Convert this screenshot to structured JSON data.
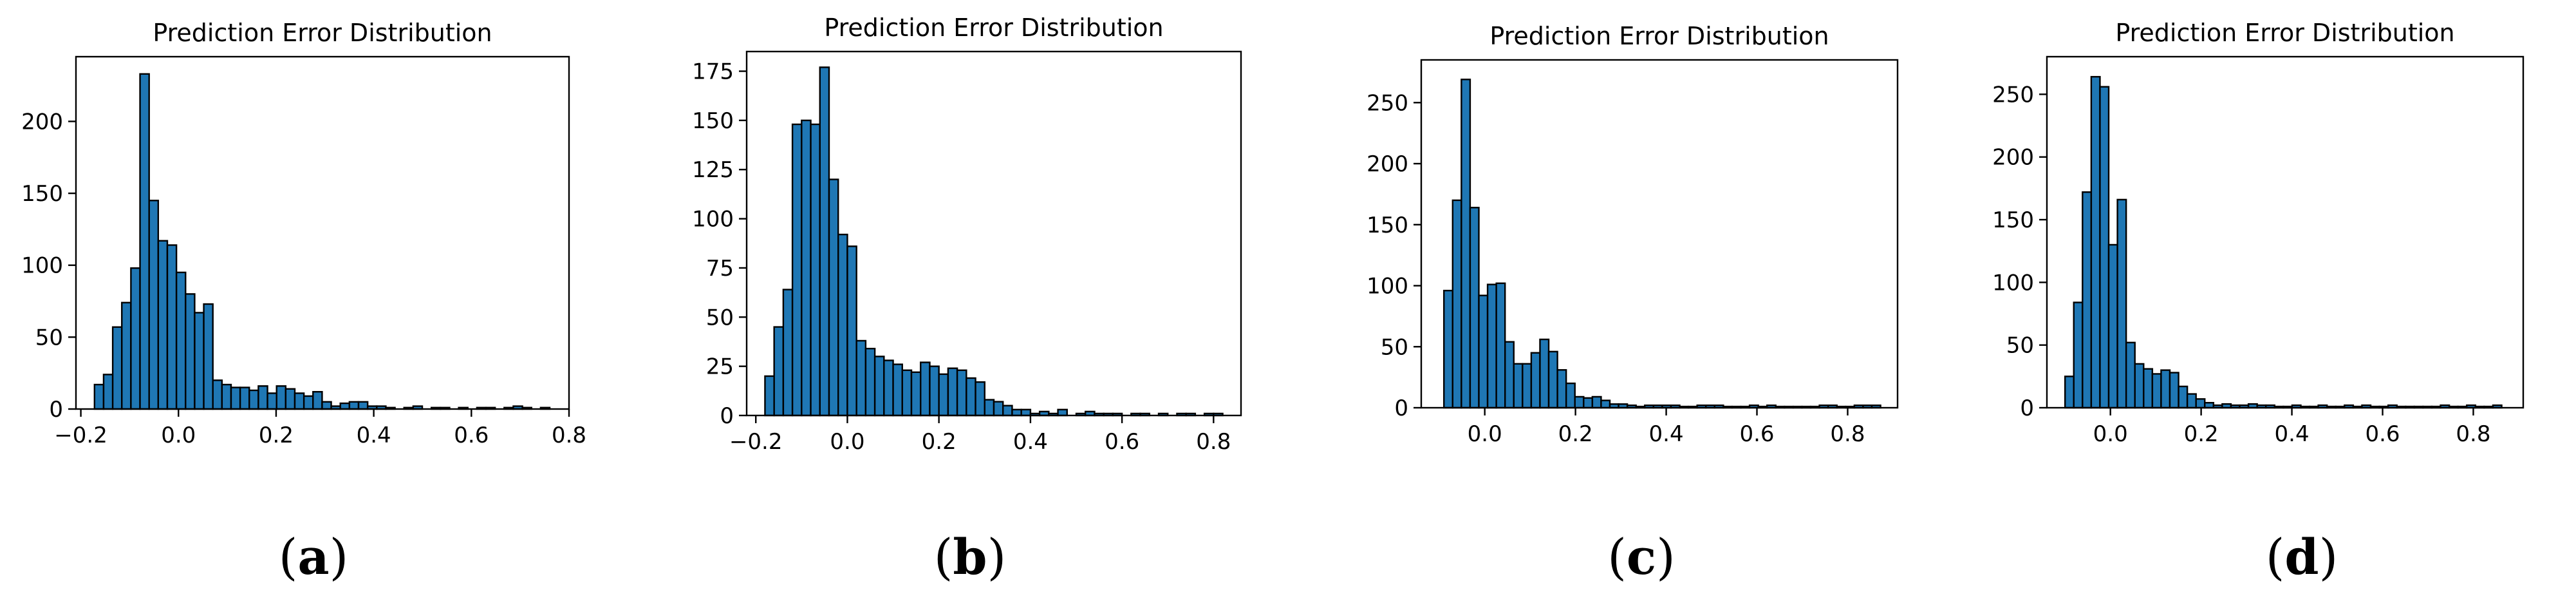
{
  "figure": {
    "panels": [
      {
        "label_open": "(",
        "label_letter": "a",
        "label_close": ")"
      },
      {
        "label_open": "(",
        "label_letter": "b",
        "label_close": ")"
      },
      {
        "label_open": "(",
        "label_letter": "c",
        "label_close": ")"
      },
      {
        "label_open": "(",
        "label_letter": "d",
        "label_close": ")"
      }
    ]
  },
  "colors": {
    "bar_fill": "#1f77b4",
    "bar_edge": "#000000"
  },
  "chart_data": [
    {
      "type": "bar",
      "title": "Prediction Error Distribution",
      "xlabel": "",
      "ylabel": "",
      "xlim": [
        -0.21,
        0.8
      ],
      "ylim": [
        0,
        245
      ],
      "xticks": [
        -0.2,
        0.0,
        0.2,
        0.4,
        0.6,
        0.8
      ],
      "xtick_labels": [
        "−0.2",
        "0.0",
        "0.2",
        "0.4",
        "0.6",
        "0.8"
      ],
      "yticks": [
        0,
        50,
        100,
        150,
        200
      ],
      "ytick_labels": [
        "0",
        "50",
        "100",
        "150",
        "200"
      ],
      "bin_start": -0.172,
      "bin_width": 0.01865,
      "values": [
        17,
        24,
        57,
        74,
        98,
        233,
        145,
        117,
        114,
        95,
        80,
        67,
        73,
        20,
        17,
        15,
        15,
        13,
        16,
        11,
        16,
        14,
        11,
        9,
        12,
        5,
        2,
        4,
        5,
        5,
        2,
        2,
        1,
        0,
        1,
        2,
        0,
        1,
        1,
        0,
        1,
        0,
        1,
        1,
        0,
        1,
        2,
        1,
        0,
        1
      ]
    },
    {
      "type": "bar",
      "title": "Prediction Error Distribution",
      "xlabel": "",
      "ylabel": "",
      "xlim": [
        -0.22,
        0.86
      ],
      "ylim": [
        0,
        185
      ],
      "xticks": [
        -0.2,
        0.0,
        0.2,
        0.4,
        0.6,
        0.8
      ],
      "xtick_labels": [
        "−0.2",
        "0.0",
        "0.2",
        "0.4",
        "0.6",
        "0.8"
      ],
      "yticks": [
        0,
        25,
        50,
        75,
        100,
        125,
        150,
        175
      ],
      "ytick_labels": [
        "0",
        "25",
        "50",
        "75",
        "100",
        "125",
        "150",
        "175"
      ],
      "bin_start": -0.18,
      "bin_width": 0.02,
      "values": [
        20,
        45,
        64,
        148,
        150,
        148,
        177,
        120,
        92,
        86,
        38,
        34,
        30,
        28,
        26,
        23,
        22,
        27,
        25,
        21,
        24,
        23,
        19,
        17,
        8,
        7,
        5,
        3,
        3,
        1,
        2,
        1,
        3,
        0,
        1,
        2,
        1,
        1,
        1,
        0,
        1,
        1,
        0,
        1,
        0,
        1,
        1,
        0,
        1,
        1
      ]
    },
    {
      "type": "bar",
      "title": "Prediction Error Distribution",
      "xlabel": "",
      "ylabel": "",
      "xlim": [
        -0.14,
        0.91
      ],
      "ylim": [
        0,
        285
      ],
      "xticks": [
        0.0,
        0.2,
        0.4,
        0.6,
        0.8
      ],
      "xtick_labels": [
        "0.0",
        "0.2",
        "0.4",
        "0.6",
        "0.8"
      ],
      "yticks": [
        0,
        50,
        100,
        150,
        200,
        250
      ],
      "ytick_labels": [
        "0",
        "50",
        "100",
        "150",
        "200",
        "250"
      ],
      "bin_start": -0.09,
      "bin_width": 0.01925,
      "values": [
        96,
        170,
        269,
        164,
        92,
        101,
        102,
        54,
        36,
        36,
        45,
        56,
        46,
        31,
        20,
        9,
        8,
        9,
        6,
        3,
        3,
        2,
        1,
        2,
        2,
        2,
        2,
        1,
        1,
        2,
        2,
        2,
        1,
        1,
        1,
        2,
        1,
        2,
        1,
        1,
        1,
        1,
        1,
        2,
        2,
        1,
        1,
        2,
        2,
        2
      ]
    },
    {
      "type": "bar",
      "title": "Prediction Error Distribution",
      "xlabel": "",
      "ylabel": "",
      "xlim": [
        -0.14,
        0.91
      ],
      "ylim": [
        0,
        280
      ],
      "xticks": [
        0.0,
        0.2,
        0.4,
        0.6,
        0.8
      ],
      "xtick_labels": [
        "0.0",
        "0.2",
        "0.4",
        "0.6",
        "0.8"
      ],
      "yticks": [
        0,
        50,
        100,
        150,
        200,
        250
      ],
      "ytick_labels": [
        "0",
        "50",
        "100",
        "150",
        "200",
        "250"
      ],
      "bin_start": -0.1,
      "bin_width": 0.01925,
      "values": [
        25,
        84,
        172,
        264,
        256,
        130,
        166,
        52,
        35,
        31,
        27,
        30,
        28,
        17,
        11,
        7,
        4,
        2,
        3,
        2,
        2,
        3,
        2,
        2,
        1,
        1,
        2,
        1,
        1,
        2,
        1,
        1,
        2,
        1,
        2,
        1,
        1,
        2,
        1,
        1,
        1,
        1,
        1,
        2,
        1,
        1,
        2,
        1,
        1,
        2
      ]
    }
  ]
}
